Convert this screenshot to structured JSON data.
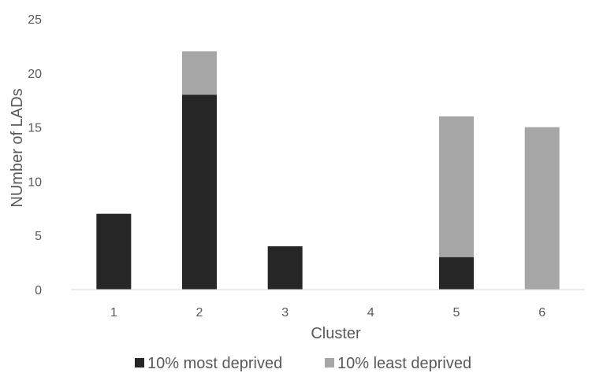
{
  "chart_data": {
    "type": "bar",
    "stacked": true,
    "categories": [
      "1",
      "2",
      "3",
      "4",
      "5",
      "6"
    ],
    "series": [
      {
        "name": "10% most deprived",
        "values": [
          7,
          18,
          4,
          0,
          3,
          0
        ],
        "color": "#262626"
      },
      {
        "name": "10% least deprived",
        "values": [
          0,
          4,
          0,
          0,
          13,
          15
        ],
        "color": "#a6a6a6"
      }
    ],
    "xlabel": "Cluster",
    "ylabel": "NUmber of LADs",
    "ylim": [
      0,
      25
    ],
    "yticks": [
      "0",
      "5",
      "10",
      "15",
      "20",
      "25"
    ],
    "grid": false,
    "legend_position": "bottom"
  }
}
